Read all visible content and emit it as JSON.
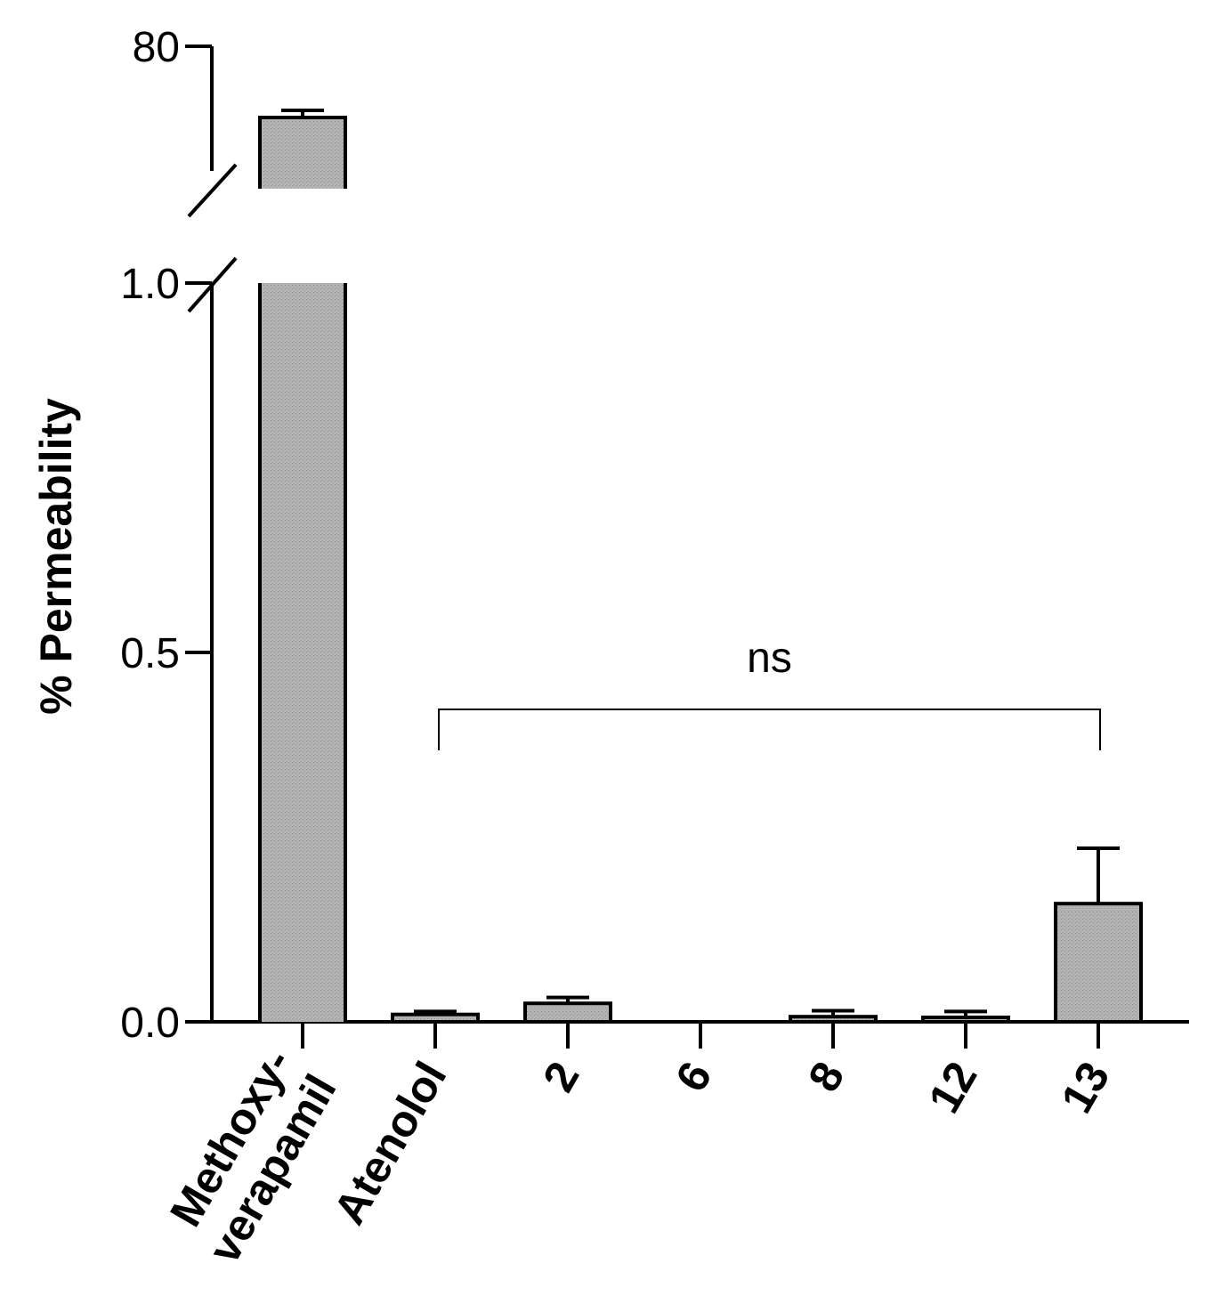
{
  "chart_data": {
    "type": "bar",
    "title": "",
    "xlabel": "",
    "ylabel": "% Permeability",
    "categories": [
      {
        "lines": [
          "Methoxy-",
          "verapamil"
        ]
      },
      {
        "lines": [
          "Atenolol"
        ]
      },
      {
        "lines": [
          "2"
        ]
      },
      {
        "lines": [
          "6"
        ]
      },
      {
        "lines": [
          "8"
        ]
      },
      {
        "lines": [
          "12"
        ]
      },
      {
        "lines": [
          "13"
        ]
      }
    ],
    "values": [
      77,
      0.01,
      0.025,
      0.0,
      0.007,
      0.006,
      0.16
    ],
    "errors": [
      0.3,
      0.004,
      0.008,
      0.0,
      0.008,
      0.008,
      0.075
    ],
    "ylim": [
      0,
      80
    ],
    "y_axis_break": {
      "lower_segment": [
        0,
        1.0
      ],
      "upper_segment": [
        74,
        80
      ]
    },
    "yticks": [
      {
        "value": 0.0,
        "label": "0.0"
      },
      {
        "value": 0.5,
        "label": "0.5"
      },
      {
        "value": 1.0,
        "label": "1.0"
      },
      {
        "value": 80,
        "label": "80"
      }
    ],
    "bar_color": "#b3b3b3",
    "annotation": {
      "text": "ns",
      "from_category": 1,
      "to_category": 6
    },
    "grid": false,
    "legend": "none"
  }
}
